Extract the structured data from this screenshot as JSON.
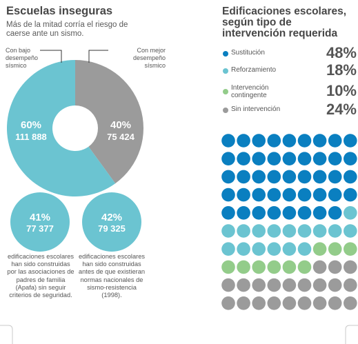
{
  "left": {
    "title": "Escuelas inseguras",
    "subtitle": "Más de la mitad corría el riesgo de caerse ante un sismo.",
    "callout_low": "Con bajo desempeño sísmico",
    "callout_high": "Con mejor desempeño sísmico",
    "captions": [
      "edificaciones escolares han sido construidas por las asociaciones de padres de familia (Apafa) sin seguir criterios de seguridad.",
      "edificaciones escolares han sido construidas antes de que existieran normas nacionales de sismo-resistencia (1998)."
    ],
    "colors": {
      "teal": "#6bc4d1",
      "gray": "#9b9b9b"
    }
  },
  "right": {
    "title": "Edificaciones escolares, según tipo de intervención requerida",
    "legend": [
      {
        "label": "Sustitución",
        "value": "48%",
        "color": "#0a7fc0"
      },
      {
        "label": "Reforzamiento",
        "value": "18%",
        "color": "#6bc4d1"
      },
      {
        "label": "Intervención contingente",
        "value": "10%",
        "color": "#93cc8a"
      },
      {
        "label": "Sin intervención",
        "value": "24%",
        "color": "#9b9b9b"
      }
    ]
  },
  "chart_data": [
    {
      "type": "pie",
      "title": "Escuelas inseguras",
      "slices": [
        {
          "name": "Con bajo desempeño sísmico",
          "percent": 60,
          "percent_label": "60%",
          "count": 111888,
          "count_label": "111 888",
          "color": "#6bc4d1"
        },
        {
          "name": "Con mejor desempeño sísmico",
          "percent": 40,
          "percent_label": "40%",
          "count": 75424,
          "count_label": "75 424",
          "color": "#9b9b9b"
        }
      ]
    },
    {
      "type": "bar",
      "bubbles": [
        {
          "percent": 41,
          "percent_label": "41%",
          "count": 77377,
          "count_label": "77 377",
          "color": "#6bc4d1"
        },
        {
          "percent": 42,
          "percent_label": "42%",
          "count": 79325,
          "count_label": "79 325",
          "color": "#6bc4d1"
        }
      ]
    },
    {
      "type": "heatmap",
      "title": "Edificaciones escolares, según tipo de intervención requerida",
      "grid": {
        "rows": 10,
        "cols": 10
      },
      "categories": [
        "Sustitución",
        "Reforzamiento",
        "Intervención contingente",
        "Sin intervención"
      ],
      "values": [
        48,
        18,
        10,
        24
      ],
      "colors": [
        "#0a7fc0",
        "#6bc4d1",
        "#93cc8a",
        "#9b9b9b"
      ]
    }
  ]
}
